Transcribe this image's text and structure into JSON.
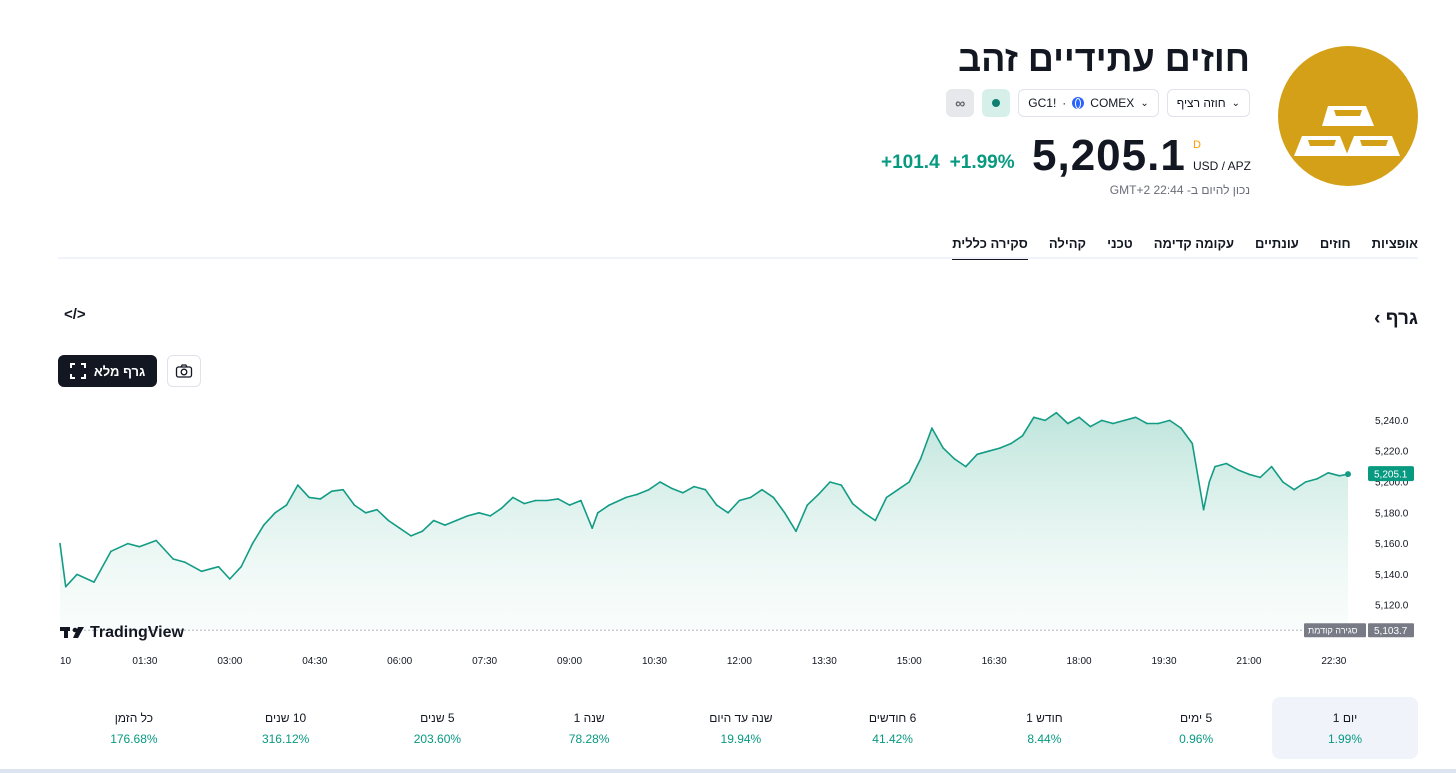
{
  "header": {
    "title": "חוזים עתידיים זהב",
    "chips": {
      "contract": "חוזה רציף",
      "symbol": "GC1!",
      "separator": "·",
      "exchange": "COMEX",
      "infinity": "∞"
    },
    "price": "5,205.1",
    "price_flag": "D",
    "currency": "USD / APZ",
    "change_abs": "+101.4",
    "change_pct": "+1.99%",
    "as_of": "נכון להיום ב- 22:44 GMT+2",
    "logo_icon": "gold-bars-icon",
    "logo_color": "#D4A017"
  },
  "tabs": [
    "סקירה כללית",
    "קהילה",
    "טכני",
    "עקומה קדימה",
    "עונתיים",
    "חוזים",
    "אופציות"
  ],
  "section": {
    "title": "גרף",
    "title_chevron": "›",
    "embed_icon": "</>",
    "full_chart_label": "גרף מלא"
  },
  "chart_data": {
    "type": "area",
    "ylim": [
      5100,
      5250
    ],
    "yticks": [
      5120,
      5140,
      5160,
      5180,
      5200,
      5220,
      5240
    ],
    "ytick_labels": [
      "5,120.0",
      "5,140.0",
      "5,160.0",
      "5,180.0",
      "5,200.0",
      "5,220.0",
      "5,240.0"
    ],
    "xlim": [
      0,
      22.75
    ],
    "xticks": [
      1.5,
      3,
      4.5,
      6,
      7.5,
      9,
      10.5,
      12,
      13.5,
      15,
      16.5,
      18,
      19.5,
      21,
      22.5
    ],
    "xtick_labels": [
      "01:30",
      "03:00",
      "04:30",
      "06:00",
      "07:30",
      "09:00",
      "10:30",
      "12:00",
      "13:30",
      "15:00",
      "16:30",
      "18:00",
      "19:30",
      "21:00",
      "22:30"
    ],
    "x_start_label": "10",
    "x": [
      0,
      0.1,
      0.3,
      0.6,
      0.9,
      1.2,
      1.4,
      1.7,
      2.0,
      2.2,
      2.5,
      2.8,
      3.0,
      3.2,
      3.4,
      3.6,
      3.8,
      4.0,
      4.2,
      4.4,
      4.6,
      4.8,
      5.0,
      5.2,
      5.4,
      5.6,
      5.8,
      6.0,
      6.2,
      6.4,
      6.6,
      6.8,
      7.0,
      7.2,
      7.4,
      7.6,
      7.8,
      8.0,
      8.2,
      8.4,
      8.6,
      8.8,
      9.0,
      9.2,
      9.4,
      9.5,
      9.7,
      10.0,
      10.2,
      10.4,
      10.6,
      10.8,
      11.0,
      11.2,
      11.4,
      11.6,
      11.8,
      12.0,
      12.2,
      12.4,
      12.6,
      12.8,
      13.0,
      13.2,
      13.4,
      13.6,
      13.8,
      14.0,
      14.2,
      14.4,
      14.6,
      14.8,
      15.0,
      15.2,
      15.4,
      15.6,
      15.8,
      16.0,
      16.2,
      16.4,
      16.6,
      16.8,
      17.0,
      17.2,
      17.4,
      17.6,
      17.8,
      18.0,
      18.2,
      18.4,
      18.6,
      18.8,
      19.0,
      19.2,
      19.4,
      19.6,
      19.8,
      20.0,
      20.2,
      20.3,
      20.4,
      20.6,
      20.8,
      21.0,
      21.2,
      21.4,
      21.6,
      21.8,
      22.0,
      22.2,
      22.4,
      22.6,
      22.75
    ],
    "y": [
      5160,
      5132,
      5140,
      5135,
      5155,
      5160,
      5158,
      5162,
      5150,
      5148,
      5142,
      5145,
      5137,
      5145,
      5160,
      5172,
      5180,
      5185,
      5198,
      5190,
      5189,
      5194,
      5195,
      5185,
      5180,
      5182,
      5175,
      5170,
      5165,
      5168,
      5175,
      5172,
      5175,
      5178,
      5180,
      5178,
      5183,
      5190,
      5186,
      5188,
      5188,
      5189,
      5185,
      5188,
      5170,
      5180,
      5185,
      5190,
      5192,
      5195,
      5200,
      5196,
      5193,
      5197,
      5195,
      5185,
      5180,
      5188,
      5190,
      5195,
      5190,
      5180,
      5168,
      5185,
      5192,
      5200,
      5198,
      5186,
      5180,
      5175,
      5190,
      5195,
      5200,
      5215,
      5235,
      5222,
      5215,
      5210,
      5218,
      5220,
      5222,
      5225,
      5230,
      5242,
      5240,
      5245,
      5238,
      5242,
      5236,
      5240,
      5238,
      5240,
      5242,
      5238,
      5238,
      5240,
      5235,
      5225,
      5182,
      5200,
      5210,
      5212,
      5208,
      5205,
      5203,
      5210,
      5200,
      5195,
      5200,
      5202,
      5206,
      5204,
      5205.1
    ],
    "last_value": "5,205.1",
    "previous_close": 5103.7,
    "previous_close_label": "סגירה קודמת",
    "previous_close_text": "5,103.7",
    "line_color": "#139c85",
    "fill_color": "#bfe5dc",
    "watermark": "TradingView"
  },
  "periods": [
    {
      "label": "יום 1",
      "value": "1.99%"
    },
    {
      "label": "5 ימים",
      "value": "0.96%"
    },
    {
      "label": "חודש 1",
      "value": "8.44%"
    },
    {
      "label": "6 חודשים",
      "value": "41.42%"
    },
    {
      "label": "שנה עד היום",
      "value": "19.94%"
    },
    {
      "label": "שנה 1",
      "value": "78.28%"
    },
    {
      "label": "5 שנים",
      "value": "203.60%"
    },
    {
      "label": "10 שנים",
      "value": "316.12%"
    },
    {
      "label": "כל הזמן",
      "value": "176.68%"
    }
  ]
}
